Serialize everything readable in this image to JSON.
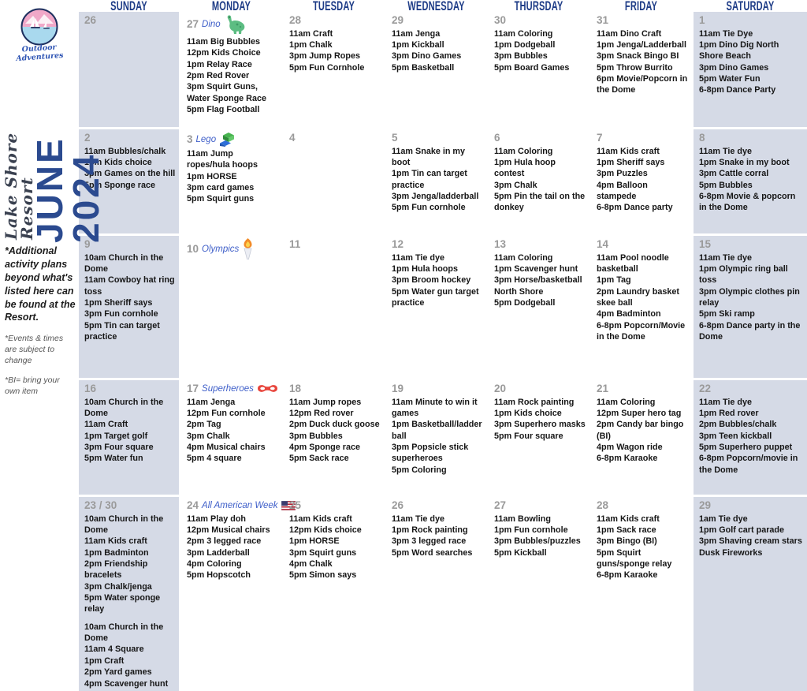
{
  "sidebar": {
    "logo_text": "Outdoor Adventures",
    "resort_name": "Lake Shore Resort",
    "month_year": "JUNE 2024",
    "notes": [
      {
        "text": "*Additional activity plans beyond what's listed here can be found at the Resort.",
        "style": "primary"
      },
      {
        "text": "*Events & times are subject to change",
        "style": "secondary"
      },
      {
        "text": "*BI= bring your own item",
        "style": "secondary"
      }
    ]
  },
  "colors": {
    "header_blue": "#1e3c87",
    "month_blue": "#2b4a8f",
    "theme_blue": "#3f5fc9",
    "weekend_bg": "#d5dae6",
    "date_gray": "#9a9a9a",
    "text_dark": "#161616"
  },
  "calendar": {
    "day_headers": [
      "SUNDAY",
      "MONDAY",
      "TUESDAY",
      "WEDNESDAY",
      "THURSDAY",
      "FRIDAY",
      "SATURDAY"
    ],
    "weeks": [
      [
        {
          "date": "26",
          "activities": []
        },
        {
          "date": "27",
          "theme": "Dino",
          "icon": "dino",
          "activities": [
            "11am Big Bubbles",
            "12pm Kids Choice",
            "1pm Relay Race",
            "2pm Red Rover",
            "3pm Squirt Guns, Water Sponge Race",
            "5pm Flag Football"
          ]
        },
        {
          "date": "28",
          "activities": [
            "11am Craft",
            "1pm Chalk",
            "3pm Jump Ropes",
            "5pm Fun Cornhole"
          ]
        },
        {
          "date": "29",
          "activities": [
            "11am Jenga",
            "1pm Kickball",
            "3pm Dino Games",
            "5pm Basketball"
          ]
        },
        {
          "date": "30",
          "activities": [
            "11am Coloring",
            "1pm Dodgeball",
            "3pm Bubbles",
            "5pm Board Games"
          ]
        },
        {
          "date": "31",
          "activities": [
            "11am Dino Craft",
            "1pm Jenga/Ladderball",
            "3pm Snack Bingo BI",
            "5pm Throw Burrito",
            "6pm Movie/Popcorn in the Dome"
          ]
        },
        {
          "date": "1",
          "activities": [
            "11am Tie Dye",
            "1pm Dino Dig North Shore Beach",
            "3pm Dino Games",
            "5pm Water Fun",
            "6-8pm Dance Party"
          ]
        }
      ],
      [
        {
          "date": "2",
          "activities": [
            "11am Bubbles/chalk",
            "1pm Kids choice",
            "3pm Games on the hill",
            "5pm Sponge race"
          ]
        },
        {
          "date": "3",
          "theme": "Lego",
          "icon": "lego",
          "activities": [
            "11am Jump ropes/hula hoops",
            "1pm HORSE",
            "3pm card games",
            "5pm Squirt guns"
          ]
        },
        {
          "date": "4",
          "activities": []
        },
        {
          "date": "5",
          "activities": [
            "11am Snake in my boot",
            "1pm Tin can target practice",
            "3pm Jenga/ladderball",
            "5pm Fun cornhole"
          ]
        },
        {
          "date": "6",
          "activities": [
            "11am Coloring",
            "1pm Hula hoop contest",
            "3pm Chalk",
            "5pm Pin the tail on the donkey"
          ]
        },
        {
          "date": "7",
          "activities": [
            "11am Kids craft",
            "1pm Sheriff says",
            "3pm Puzzles",
            "4pm Balloon stampede",
            "6-8pm Dance party"
          ]
        },
        {
          "date": "8",
          "activities": [
            "11am Tie dye",
            "1pm Snake in my boot",
            "3pm Cattle corral",
            "5pm Bubbles",
            "6-8pm Movie & popcorn in the Dome"
          ]
        }
      ],
      [
        {
          "date": "9",
          "activities": [
            "10am Church in the Dome",
            "11am Cowboy hat ring toss",
            "1pm Sheriff says",
            "3pm Fun cornhole",
            "5pm Tin can target practice"
          ]
        },
        {
          "date": "10",
          "theme": "Olympics",
          "icon": "olympic-torch",
          "activities": []
        },
        {
          "date": "11",
          "activities": []
        },
        {
          "date": "12",
          "activities": [
            "11am Tie dye",
            "1pm Hula hoops",
            "3pm Broom hockey",
            "5pm Water gun target practice"
          ]
        },
        {
          "date": "13",
          "activities": [
            "11am Coloring",
            "1pm Scavenger hunt",
            "3pm Horse/basketball North Shore",
            "5pm Dodgeball"
          ]
        },
        {
          "date": "14",
          "activities": [
            "11am Pool noodle basketball",
            "1pm Tag",
            "2pm Laundry basket skee ball",
            "4pm Badminton",
            "6-8pm Popcorn/Movie in the Dome"
          ]
        },
        {
          "date": "15",
          "activities": [
            "11am Tie dye",
            "1pm Olympic ring ball toss",
            "3pm Olympic clothes pin relay",
            "5pm Ski ramp",
            "6-8pm Dance party in the Dome"
          ]
        }
      ],
      [
        {
          "date": "16",
          "activities": [
            "10am Church in the Dome",
            "11am Craft",
            "1pm Target golf",
            "3pm Four square",
            "5pm Water fun"
          ]
        },
        {
          "date": "17",
          "theme": "Superheroes",
          "icon": "superhero-mask",
          "activities": [
            "11am Jenga",
            "12pm Fun cornhole",
            "2pm Tag",
            "3pm Chalk",
            "4pm Musical chairs",
            "5pm 4 square"
          ]
        },
        {
          "date": "18",
          "activities": [
            "11am Jump ropes",
            "12pm Red rover",
            "2pm Duck duck goose",
            "3pm Bubbles",
            "4pm Sponge race",
            "5pm Sack race"
          ]
        },
        {
          "date": "19",
          "activities": [
            "11am Minute to win it games",
            "1pm Basketball/ladder ball",
            "3pm Popsicle stick superheroes",
            "5pm Coloring"
          ]
        },
        {
          "date": "20",
          "activities": [
            "11am Rock painting",
            "1pm Kids choice",
            "3pm Superhero masks",
            "5pm Four square"
          ]
        },
        {
          "date": "21",
          "activities": [
            "11am Coloring",
            "12pm Super hero tag",
            "2pm Candy bar bingo (BI)",
            "4pm Wagon ride",
            "6-8pm Karaoke"
          ]
        },
        {
          "date": "22",
          "activities": [
            "11am Tie dye",
            "1pm Red rover",
            "2pm Bubbles/chalk",
            "3pm Teen kickball",
            "5pm Superhero puppet",
            "6-8pm Popcorn/movie in the Dome"
          ]
        }
      ],
      [
        {
          "date": "23 / 30",
          "activities": [
            "10am Church in the Dome",
            "11am Kids craft",
            "1pm Badminton",
            "2pm Friendship bracelets",
            "3pm Chalk/jenga",
            "5pm Water sponge relay"
          ],
          "activities2": [
            "10am Church in the Dome",
            "11am 4 Square",
            "1pm Craft",
            "2pm Yard games",
            "4pm Scavenger hunt"
          ]
        },
        {
          "date": "24",
          "theme": "All American Week",
          "icon": "us-flag",
          "activities": [
            "11am Play doh",
            "12pm Musical chairs",
            "2pm 3 legged race",
            "3pm Ladderball",
            "4pm Coloring",
            "5pm Hopscotch"
          ]
        },
        {
          "date": "25",
          "activities": [
            "11am Kids craft",
            "12pm Kids choice",
            "1pm HORSE",
            "3pm Squirt guns",
            "4pm Chalk",
            "5pm Simon says"
          ]
        },
        {
          "date": "26",
          "activities": [
            "11am Tie dye",
            "1pm Rock painting",
            "3pm 3 legged race",
            "5pm Word searches"
          ]
        },
        {
          "date": "27",
          "activities": [
            "11am Bowling",
            "1pm Fun cornhole",
            "3pm Bubbles/puzzles",
            "5pm Kickball"
          ]
        },
        {
          "date": "28",
          "activities": [
            "11am Kids craft",
            "1pm Sack race",
            "3pm Bingo (BI)",
            "5pm Squirt guns/sponge relay",
            "6-8pm Karaoke"
          ]
        },
        {
          "date": "29",
          "activities": [
            "1am Tie dye",
            "1pm Golf cart parade",
            "3pm Shaving cream stars",
            "Dusk Fireworks"
          ]
        }
      ]
    ]
  }
}
